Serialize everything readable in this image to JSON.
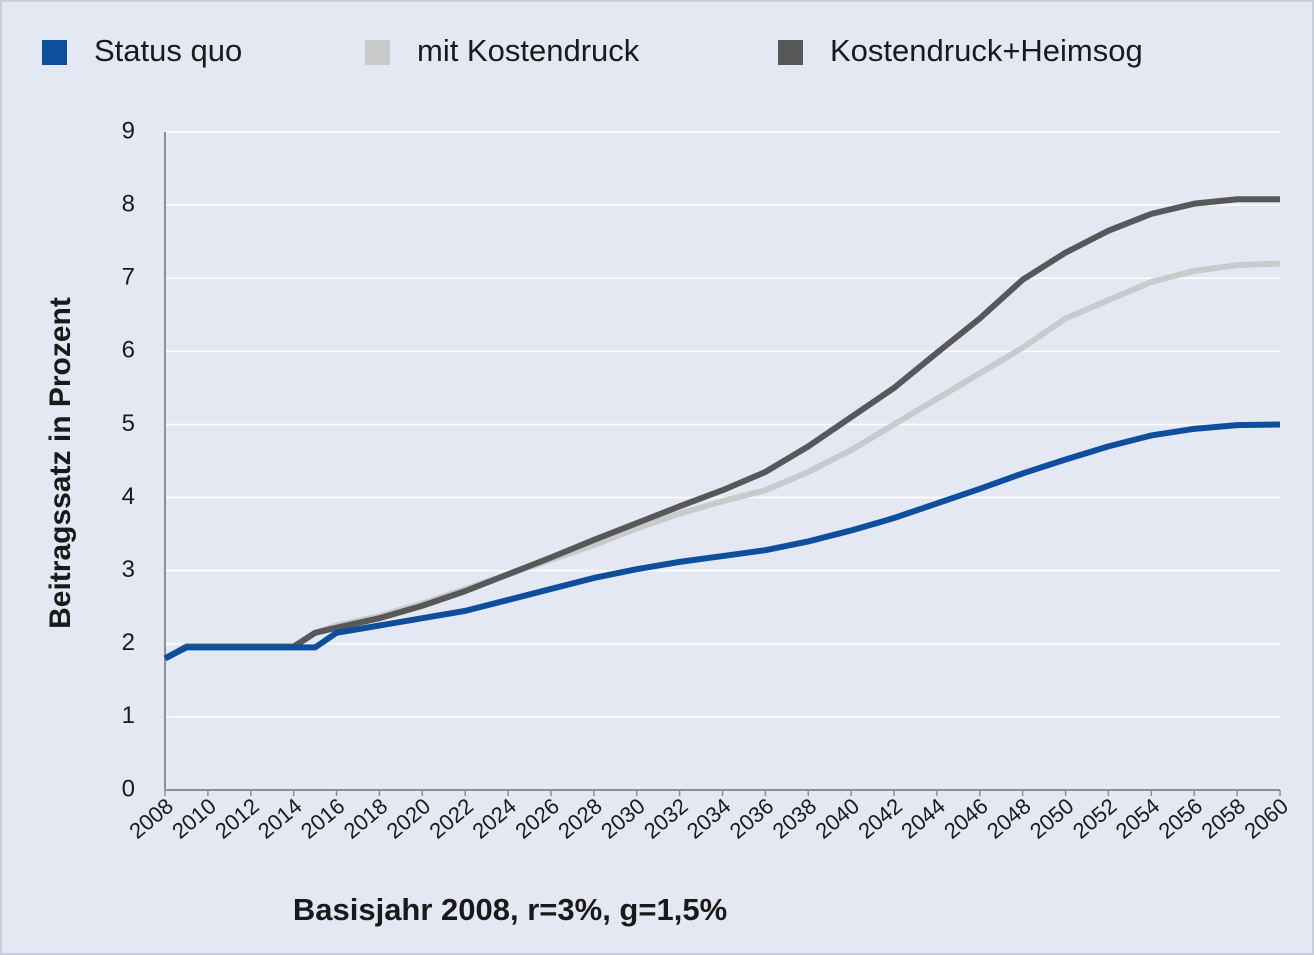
{
  "chart_data": {
    "type": "line",
    "x_label": "Basisjahr 2008, r=3%, g=1,5%",
    "y_label": "Beitragssatz in Prozent",
    "x": [
      2008,
      2009,
      2010,
      2012,
      2014,
      2015,
      2016,
      2018,
      2020,
      2022,
      2024,
      2026,
      2028,
      2030,
      2032,
      2034,
      2036,
      2038,
      2040,
      2042,
      2044,
      2046,
      2048,
      2050,
      2052,
      2054,
      2056,
      2058,
      2060
    ],
    "series": [
      {
        "name": "Status quo",
        "color": "#0d4f9c",
        "values": [
          1.8,
          1.95,
          1.95,
          1.95,
          1.95,
          1.95,
          2.15,
          2.25,
          2.35,
          2.45,
          2.6,
          2.75,
          2.9,
          3.02,
          3.12,
          3.2,
          3.28,
          3.4,
          3.55,
          3.72,
          3.92,
          4.12,
          4.33,
          4.52,
          4.7,
          4.85,
          4.94,
          4.99,
          5.0
        ]
      },
      {
        "name": "mit Kostendruck",
        "color": "#c8cacb",
        "values": [
          1.8,
          1.97,
          1.97,
          1.97,
          1.97,
          2.15,
          2.25,
          2.38,
          2.55,
          2.75,
          2.95,
          3.15,
          3.35,
          3.58,
          3.78,
          3.95,
          4.1,
          4.35,
          4.65,
          5.0,
          5.35,
          5.7,
          6.05,
          6.45,
          6.7,
          6.95,
          7.1,
          7.18,
          7.2
        ]
      },
      {
        "name": "Kostendruck+Heimsog",
        "color": "#58585a",
        "values": [
          1.8,
          1.96,
          1.96,
          1.96,
          1.96,
          2.15,
          2.22,
          2.35,
          2.52,
          2.72,
          2.95,
          3.18,
          3.42,
          3.65,
          3.88,
          4.1,
          4.35,
          4.7,
          5.1,
          5.5,
          5.98,
          6.45,
          6.98,
          7.35,
          7.65,
          7.88,
          8.02,
          8.08,
          8.08
        ]
      }
    ],
    "xlim": [
      2008,
      2060
    ],
    "xticks": [
      2008,
      2010,
      2012,
      2014,
      2016,
      2018,
      2020,
      2022,
      2024,
      2026,
      2028,
      2030,
      2032,
      2034,
      2036,
      2038,
      2040,
      2042,
      2044,
      2046,
      2048,
      2050,
      2052,
      2054,
      2056,
      2058,
      2060
    ],
    "ylim": [
      0,
      9
    ],
    "yticks": [
      0,
      1,
      2,
      3,
      4,
      5,
      6,
      7,
      8,
      9
    ],
    "grid": true,
    "legend": "top"
  }
}
